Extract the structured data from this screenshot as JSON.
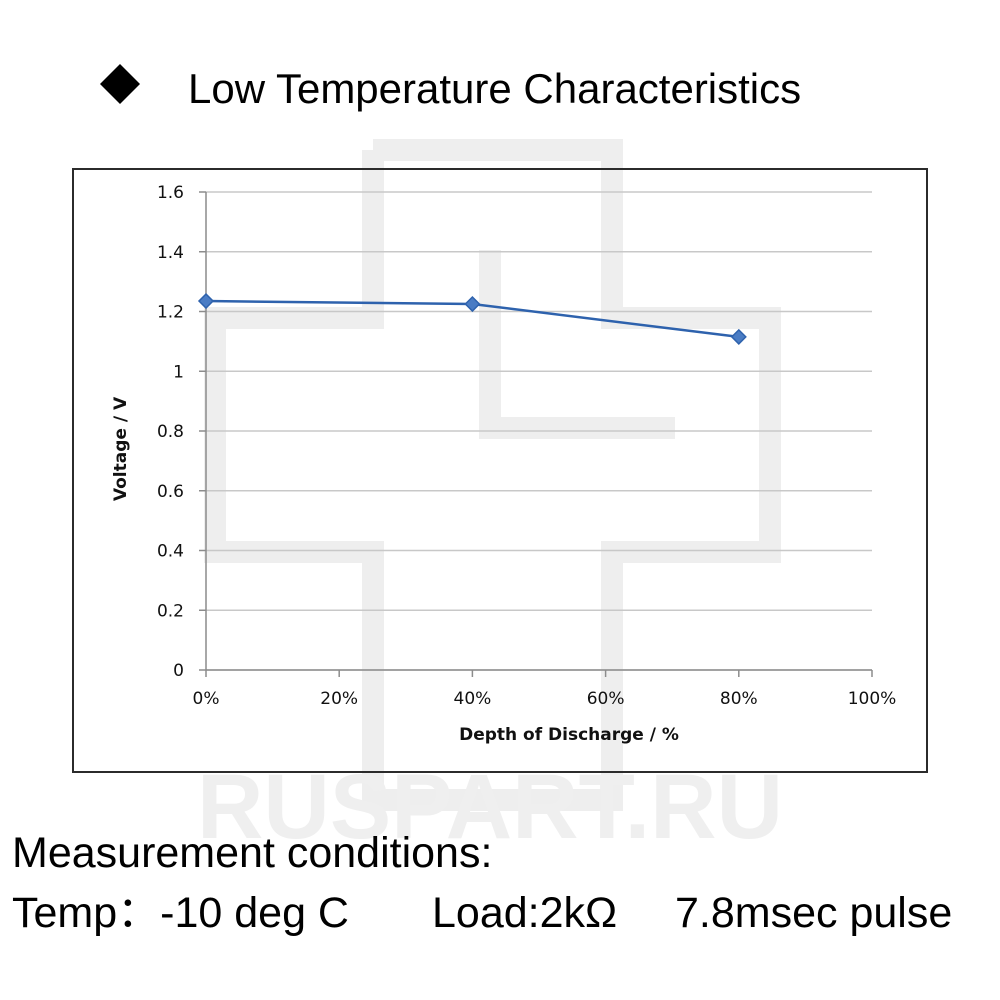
{
  "header": {
    "bullet_icon": "diamond-bullet-icon",
    "title": "Low Temperature Characteristics"
  },
  "watermark": {
    "text": "RUSPART.RU"
  },
  "chart_data": {
    "type": "line",
    "title": "",
    "xlabel": "Depth of Discharge / %",
    "ylabel": "Voltage  / V",
    "x_ticks": [
      "0%",
      "20%",
      "40%",
      "60%",
      "80%",
      "100%"
    ],
    "y_ticks": [
      "0",
      "0.2",
      "0.4",
      "0.6",
      "0.8",
      "1",
      "1.2",
      "1.4",
      "1.6"
    ],
    "xlim": [
      0,
      100
    ],
    "ylim": [
      0,
      1.6
    ],
    "grid": true,
    "series": [
      {
        "name": "Voltage",
        "color": "#2e62ad",
        "marker": "diamond",
        "x": [
          0,
          40,
          80
        ],
        "y": [
          1.235,
          1.225,
          1.115
        ]
      }
    ]
  },
  "conditions": {
    "heading": "Measurement conditions:",
    "temp": "Temp：-10 deg C",
    "load": "Load:2kΩ",
    "pulse": "7.8msec pulse"
  }
}
